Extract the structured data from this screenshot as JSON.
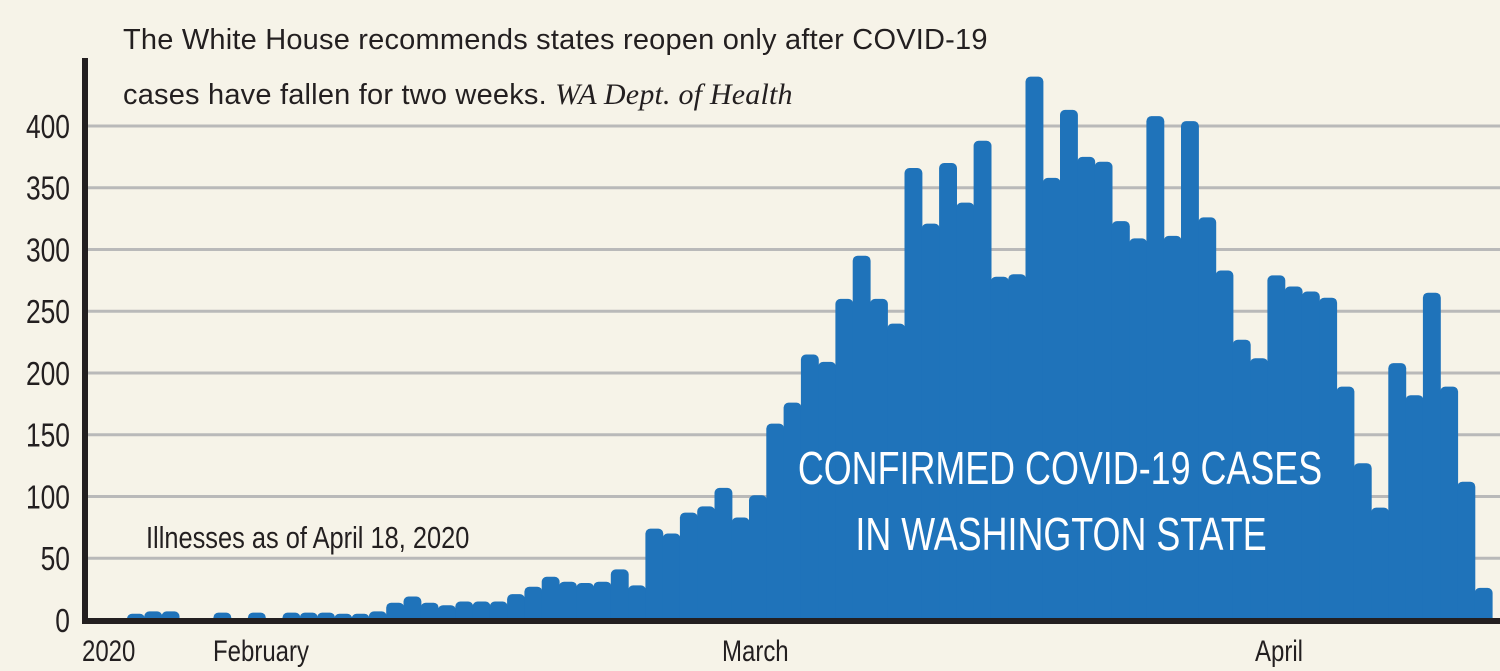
{
  "chart_data": {
    "type": "bar",
    "title": "CONFIRMED COVID-19 CASES IN WASHINGTON STATE",
    "title_lines": [
      "CONFIRMED COVID-19 CASES",
      "IN WASHINGTON STATE"
    ],
    "note": {
      "line1": "The White House recommends states reopen only after COVID-19",
      "line2": "cases have fallen for two weeks.",
      "source": "WA Dept. of Health"
    },
    "subtitle": "Illnesses as of April 18, 2020",
    "xlabel": "",
    "ylabel": "",
    "ylim": [
      0,
      450
    ],
    "yticks": [
      0,
      50,
      100,
      150,
      200,
      250,
      300,
      350,
      400
    ],
    "xtick_labels": [
      {
        "label": "2020",
        "day_index": -1
      },
      {
        "label": "February",
        "day_index": 8
      },
      {
        "label": "March",
        "day_index": 37
      },
      {
        "label": "April",
        "day_index": 68
      }
    ],
    "grid": true,
    "colors": {
      "bar": "#1f73ba",
      "background": "#f6f3e8",
      "axis": "#231f20",
      "grid": "#b9b9b9",
      "title": "#ffffff"
    },
    "values": [
      5,
      7,
      7,
      0,
      0,
      6,
      0,
      6,
      0,
      6,
      6,
      6,
      5,
      5,
      7,
      14,
      19,
      14,
      12,
      15,
      15,
      15,
      21,
      27,
      35,
      31,
      30,
      31,
      41,
      28,
      74,
      70,
      87,
      92,
      107,
      83,
      101,
      159,
      176,
      215,
      209,
      260,
      295,
      260,
      240,
      366,
      321,
      370,
      338,
      388,
      278,
      280,
      440,
      358,
      413,
      375,
      371,
      323,
      309,
      408,
      311,
      404,
      326,
      283,
      227,
      212,
      279,
      270,
      266,
      261,
      189,
      127,
      91,
      208,
      182,
      265,
      189,
      112,
      26
    ]
  }
}
